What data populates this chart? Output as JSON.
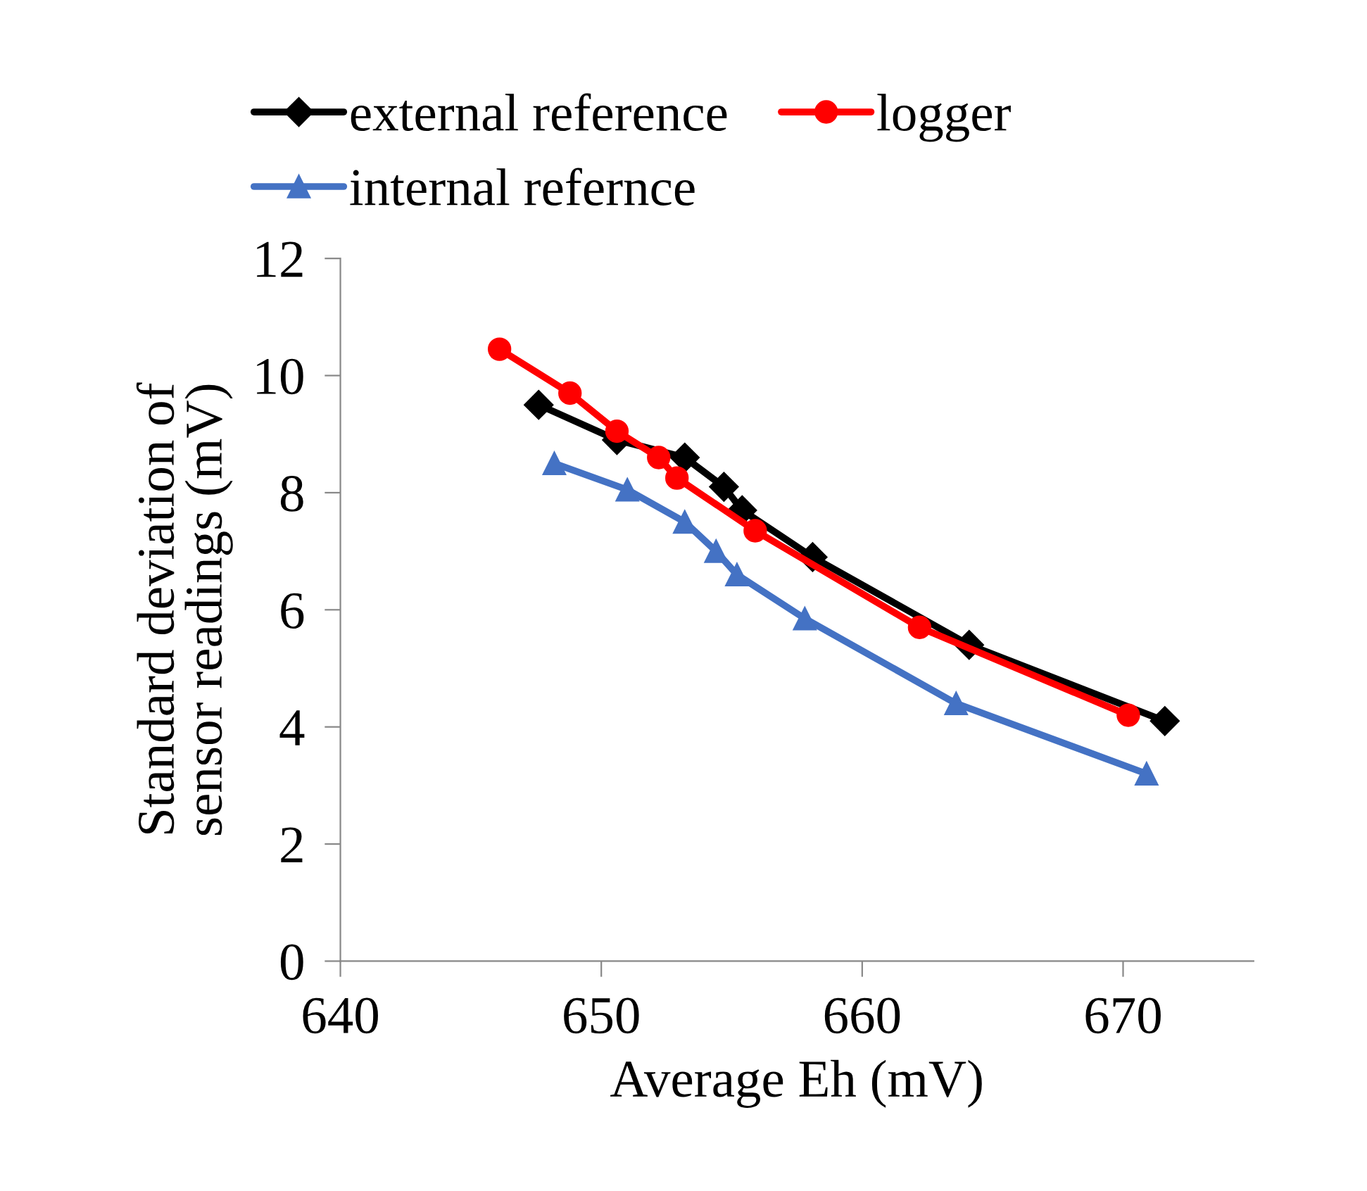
{
  "chart_data": {
    "type": "line",
    "xlabel": "Average Eh (mV)",
    "ylabel": "Standard deviation of sensor readings (mV)",
    "xlim": [
      640,
      675
    ],
    "xticks": [
      640,
      650,
      660,
      670
    ],
    "ylim": [
      0,
      12
    ],
    "yticks": [
      0,
      2,
      4,
      6,
      8,
      10,
      12
    ],
    "grid": false,
    "legend": "top",
    "line_style": "solid",
    "series": [
      {
        "name": "external reference",
        "color": "#000000",
        "marker": "diamond",
        "x": [
          647.6,
          650.6,
          653.2,
          654.7,
          655.4,
          658.1,
          664.1,
          671.6
        ],
        "values": [
          9.5,
          8.9,
          8.6,
          8.1,
          7.7,
          6.9,
          5.4,
          4.1
        ]
      },
      {
        "name": "logger",
        "color": "#ff0000",
        "marker": "circle",
        "x": [
          646.1,
          648.8,
          650.6,
          652.2,
          652.9,
          655.9,
          662.2,
          670.2
        ],
        "values": [
          10.45,
          9.7,
          9.05,
          8.6,
          8.25,
          7.35,
          5.7,
          4.2
        ]
      },
      {
        "name": "internal refernce",
        "color": "#4472c4",
        "marker": "triangle",
        "x": [
          648.2,
          651.0,
          653.2,
          654.4,
          655.2,
          657.8,
          663.6,
          670.9
        ],
        "values": [
          8.5,
          8.05,
          7.5,
          7.0,
          6.6,
          5.85,
          4.4,
          3.2
        ]
      }
    ]
  }
}
